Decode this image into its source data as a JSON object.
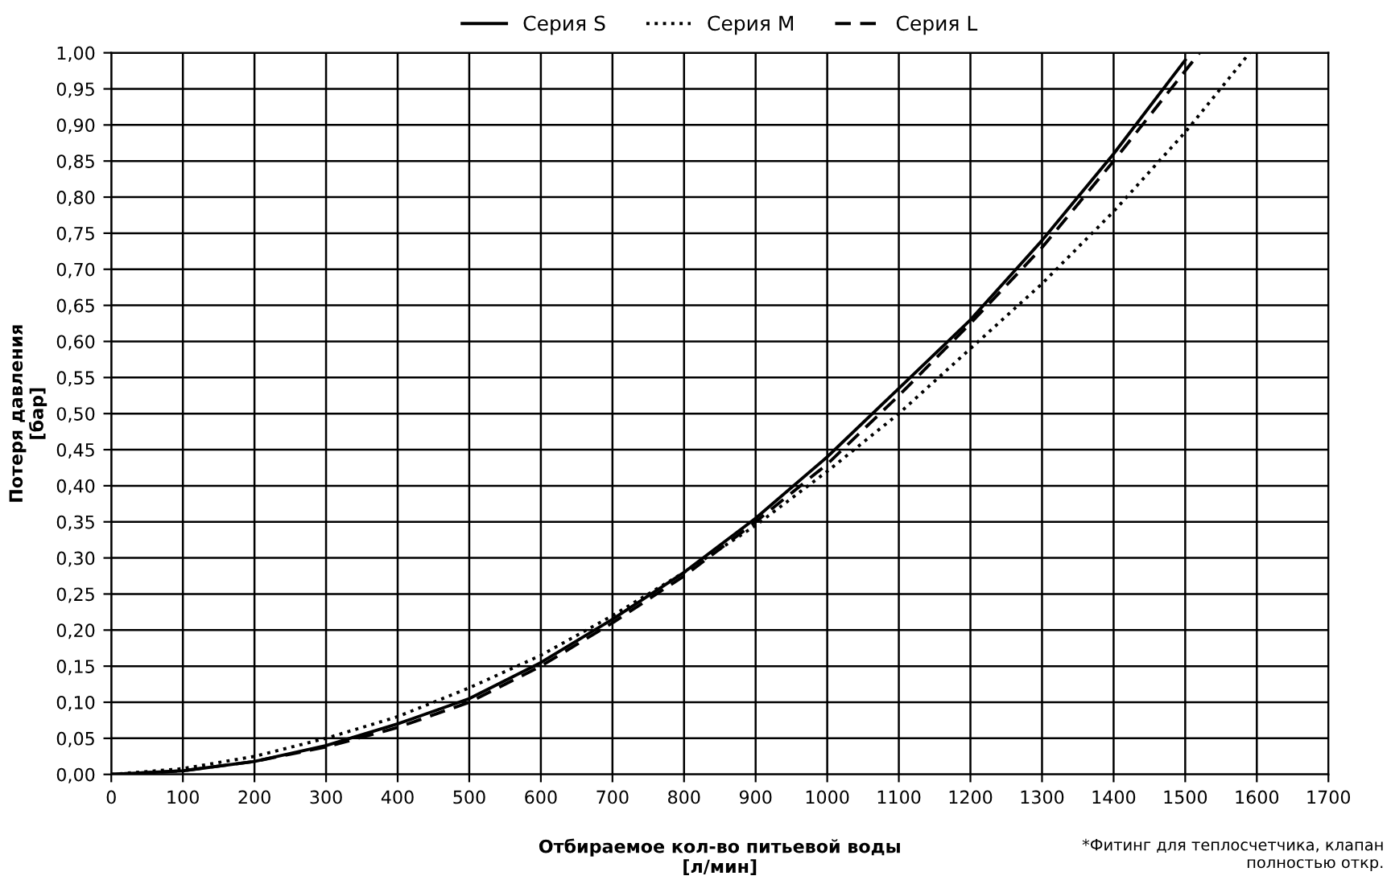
{
  "chart_data": {
    "type": "line",
    "xlabel": "Отбираемое кол-во питьевой воды\n[л/мин]",
    "ylabel": "Потеря давления\n[бар]",
    "xlim": [
      0,
      1700
    ],
    "xticks": [
      0,
      100,
      200,
      300,
      400,
      500,
      600,
      700,
      800,
      900,
      1000,
      1100,
      1200,
      1300,
      1400,
      1500,
      1600,
      1700
    ],
    "ylim": [
      0,
      1
    ],
    "yticks": [
      {
        "value": 0,
        "label": "0,00"
      },
      {
        "value": 0.05,
        "label": "0,05"
      },
      {
        "value": 0.1,
        "label": "0,10"
      },
      {
        "value": 0.15,
        "label": "0,15"
      },
      {
        "value": 0.2,
        "label": "0,20"
      },
      {
        "value": 0.25,
        "label": "0,25"
      },
      {
        "value": 0.3,
        "label": "0,30"
      },
      {
        "value": 0.35,
        "label": "0,35"
      },
      {
        "value": 0.4,
        "label": "0,40"
      },
      {
        "value": 0.45,
        "label": "0,45"
      },
      {
        "value": 0.5,
        "label": "0,50"
      },
      {
        "value": 0.55,
        "label": "0,55"
      },
      {
        "value": 0.6,
        "label": "0,60"
      },
      {
        "value": 0.65,
        "label": "0,65"
      },
      {
        "value": 0.7,
        "label": "0,70"
      },
      {
        "value": 0.75,
        "label": "0,75"
      },
      {
        "value": 0.8,
        "label": "0,80"
      },
      {
        "value": 0.85,
        "label": "0,85"
      },
      {
        "value": 0.9,
        "label": "0,90"
      },
      {
        "value": 0.95,
        "label": "0,95"
      },
      {
        "value": 1,
        "label": "1,00"
      }
    ],
    "grid": true,
    "legend": "top",
    "annotations": [
      "*Фитинг для теплосчетчика, клапан\nполностью откр."
    ],
    "series": [
      {
        "name": "Серия S",
        "color": "#000000",
        "line_style": "solid",
        "x": [
          0,
          100,
          200,
          300,
          400,
          500,
          600,
          700,
          800,
          900,
          1000,
          1100,
          1200,
          1300,
          1400,
          1500
        ],
        "values": [
          0,
          0.005,
          0.018,
          0.04,
          0.07,
          0.105,
          0.155,
          0.215,
          0.28,
          0.355,
          0.44,
          0.535,
          0.63,
          0.74,
          0.86,
          0.99
        ]
      },
      {
        "name": "Серия M",
        "color": "#000000",
        "line_style": "dotted",
        "x": [
          0,
          100,
          200,
          300,
          400,
          500,
          600,
          700,
          800,
          900,
          1000,
          1100,
          1200,
          1300,
          1400,
          1500,
          1590
        ],
        "values": [
          0,
          0.008,
          0.025,
          0.05,
          0.08,
          0.12,
          0.165,
          0.22,
          0.28,
          0.345,
          0.42,
          0.5,
          0.59,
          0.68,
          0.78,
          0.89,
          1.0
        ]
      },
      {
        "name": "Серия L",
        "color": "#000000",
        "line_style": "dashed",
        "x": [
          0,
          100,
          200,
          300,
          400,
          500,
          600,
          700,
          800,
          900,
          1000,
          1100,
          1200,
          1300,
          1400,
          1500,
          1520
        ],
        "values": [
          0,
          0.005,
          0.018,
          0.038,
          0.065,
          0.1,
          0.15,
          0.21,
          0.275,
          0.35,
          0.43,
          0.525,
          0.625,
          0.73,
          0.85,
          0.975,
          1.0
        ]
      }
    ]
  }
}
